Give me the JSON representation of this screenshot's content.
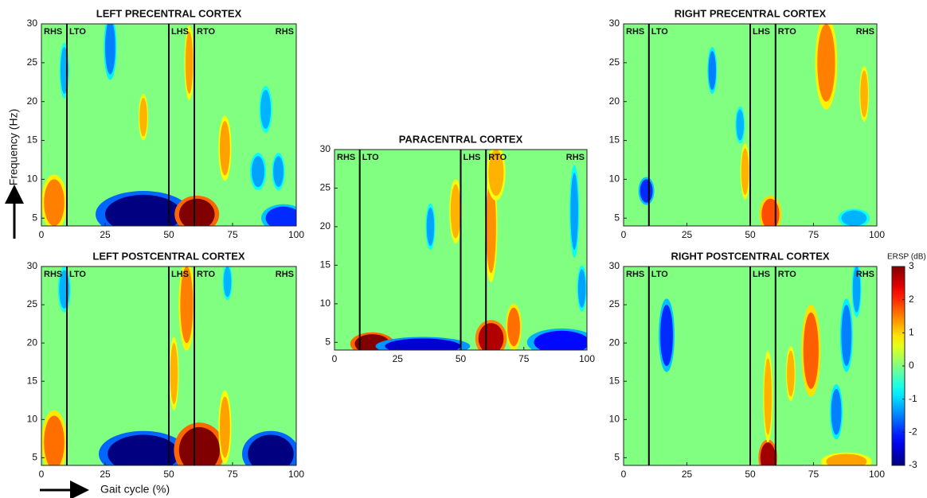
{
  "chart_data": [
    {
      "type": "heatmap",
      "title": "LEFT PRECENTRAL CORTEX",
      "ylabel": "Frequency (Hz)",
      "xlim": [
        0,
        100
      ],
      "ylim": [
        4,
        30
      ],
      "xticks": [
        0,
        25,
        50,
        75,
        100
      ],
      "yticks": [
        5,
        10,
        15,
        20,
        25,
        30
      ],
      "clim": [
        -3,
        3
      ],
      "events": [
        {
          "label": "RHS",
          "x": 0
        },
        {
          "label": "LTO",
          "x": 10
        },
        {
          "label": "LHS",
          "x": 50
        },
        {
          "label": "RTO",
          "x": 60
        },
        {
          "label": "RHS",
          "x": 100
        }
      ],
      "blobs": [
        {
          "x": 40,
          "y": 5.5,
          "w": 30,
          "h": 5,
          "value": -3
        },
        {
          "x": 61,
          "y": 5.5,
          "w": 14,
          "h": 4,
          "value": 3
        },
        {
          "x": 5,
          "y": 7,
          "w": 8,
          "h": 6,
          "value": 1.5
        },
        {
          "x": 27,
          "y": 27,
          "w": 4,
          "h": 7,
          "value": -1.5
        },
        {
          "x": 9,
          "y": 24,
          "w": 3,
          "h": 6,
          "value": -1.2
        },
        {
          "x": 72,
          "y": 14,
          "w": 4,
          "h": 7,
          "value": 1.3
        },
        {
          "x": 88,
          "y": 19,
          "w": 4,
          "h": 5,
          "value": -1.2
        },
        {
          "x": 85,
          "y": 11,
          "w": 5,
          "h": 4,
          "value": -1.3
        },
        {
          "x": 93,
          "y": 11,
          "w": 4,
          "h": 4,
          "value": -1.3
        },
        {
          "x": 40,
          "y": 18,
          "w": 3,
          "h": 5,
          "value": 1.2
        },
        {
          "x": 58,
          "y": 25,
          "w": 3,
          "h": 8,
          "value": 1.3
        },
        {
          "x": 95,
          "y": 5,
          "w": 14,
          "h": 3,
          "value": -2
        }
      ]
    },
    {
      "type": "heatmap",
      "title": "LEFT POSTCENTRAL CORTEX",
      "xlabel": "Gait cycle (%)",
      "xlim": [
        0,
        100
      ],
      "ylim": [
        4,
        30
      ],
      "xticks": [
        0,
        25,
        50,
        75,
        100
      ],
      "yticks": [
        5,
        10,
        15,
        20,
        25,
        30
      ],
      "clim": [
        -3,
        3
      ],
      "events": [
        {
          "label": "RHS",
          "x": 0
        },
        {
          "label": "LTO",
          "x": 10
        },
        {
          "label": "LHS",
          "x": 50
        },
        {
          "label": "RTO",
          "x": 60
        },
        {
          "label": "RHS",
          "x": 100
        }
      ],
      "blobs": [
        {
          "x": 40,
          "y": 5.5,
          "w": 28,
          "h": 5,
          "value": -3
        },
        {
          "x": 62,
          "y": 6,
          "w": 16,
          "h": 6,
          "value": 3
        },
        {
          "x": 90,
          "y": 5.5,
          "w": 18,
          "h": 5,
          "value": -3
        },
        {
          "x": 5,
          "y": 7,
          "w": 8,
          "h": 7,
          "value": 1.6
        },
        {
          "x": 57,
          "y": 25,
          "w": 5,
          "h": 10,
          "value": 1.5
        },
        {
          "x": 52,
          "y": 16,
          "w": 3,
          "h": 8,
          "value": 1.2
        },
        {
          "x": 9,
          "y": 27,
          "w": 4,
          "h": 5,
          "value": -1.2
        },
        {
          "x": 72,
          "y": 9,
          "w": 4,
          "h": 8,
          "value": 1.3
        },
        {
          "x": 73,
          "y": 28,
          "w": 3,
          "h": 4,
          "value": -1.2
        }
      ]
    },
    {
      "type": "heatmap",
      "title": "PARACENTRAL CORTEX",
      "xlim": [
        0,
        100
      ],
      "ylim": [
        4,
        30
      ],
      "xticks": [
        0,
        25,
        50,
        75,
        100
      ],
      "yticks": [
        5,
        10,
        15,
        20,
        25,
        30
      ],
      "clim": [
        -3,
        3
      ],
      "events": [
        {
          "label": "RHS",
          "x": 0
        },
        {
          "label": "LTO",
          "x": 10
        },
        {
          "label": "LHS",
          "x": 50
        },
        {
          "label": "RTO",
          "x": 60
        },
        {
          "label": "RHS",
          "x": 100
        }
      ],
      "blobs": [
        {
          "x": 15,
          "y": 4.8,
          "w": 14,
          "h": 2.5,
          "value": 3
        },
        {
          "x": 62,
          "y": 5.5,
          "w": 10,
          "h": 4,
          "value": 2.7
        },
        {
          "x": 71,
          "y": 7,
          "w": 5,
          "h": 5,
          "value": 1.6
        },
        {
          "x": 35,
          "y": 4.5,
          "w": 30,
          "h": 2,
          "value": -2.5
        },
        {
          "x": 90,
          "y": 5,
          "w": 22,
          "h": 3,
          "value": -2.2
        },
        {
          "x": 62,
          "y": 20,
          "w": 4,
          "h": 12,
          "value": 1.4
        },
        {
          "x": 48,
          "y": 22,
          "w": 4,
          "h": 7,
          "value": 1.2
        },
        {
          "x": 38,
          "y": 20,
          "w": 3,
          "h": 5,
          "value": -1.3
        },
        {
          "x": 95,
          "y": 22,
          "w": 3,
          "h": 10,
          "value": -1.3
        },
        {
          "x": 64,
          "y": 27,
          "w": 6,
          "h": 6,
          "value": 1.2
        },
        {
          "x": 98,
          "y": 12,
          "w": 3,
          "h": 5,
          "value": -1.3
        }
      ]
    },
    {
      "type": "heatmap",
      "title": "RIGHT PRECENTRAL CORTEX",
      "xlim": [
        0,
        100
      ],
      "ylim": [
        4,
        30
      ],
      "xticks": [
        0,
        25,
        50,
        75,
        100
      ],
      "yticks": [
        5,
        10,
        15,
        20,
        25,
        30
      ],
      "clim": [
        -3,
        3
      ],
      "events": [
        {
          "label": "RHS",
          "x": 0
        },
        {
          "label": "LTO",
          "x": 10
        },
        {
          "label": "LHS",
          "x": 50
        },
        {
          "label": "RTO",
          "x": 60
        },
        {
          "label": "RHS",
          "x": 100
        }
      ],
      "blobs": [
        {
          "x": 9,
          "y": 8.5,
          "w": 5,
          "h": 3,
          "value": -2
        },
        {
          "x": 58,
          "y": 5.5,
          "w": 7,
          "h": 4,
          "value": 1.8
        },
        {
          "x": 35,
          "y": 24,
          "w": 3,
          "h": 5,
          "value": -1.5
        },
        {
          "x": 80,
          "y": 25,
          "w": 7,
          "h": 10,
          "value": 1.5
        },
        {
          "x": 95,
          "y": 21,
          "w": 3,
          "h": 6,
          "value": 1.2
        },
        {
          "x": 48,
          "y": 11,
          "w": 3,
          "h": 6,
          "value": 1.2
        },
        {
          "x": 91,
          "y": 5,
          "w": 10,
          "h": 2,
          "value": -1.2
        },
        {
          "x": 46,
          "y": 17,
          "w": 3,
          "h": 4,
          "value": -1.2
        }
      ]
    },
    {
      "type": "heatmap",
      "title": "RIGHT POSTCENTRAL CORTEX",
      "clabel": "ERSP (dB)",
      "cticks": [
        -3,
        -2,
        -1,
        0,
        1,
        2,
        3
      ],
      "xlim": [
        0,
        100
      ],
      "ylim": [
        4,
        30
      ],
      "xticks": [
        0,
        25,
        50,
        75,
        100
      ],
      "yticks": [
        5,
        10,
        15,
        20,
        25,
        30
      ],
      "clim": [
        -3,
        3
      ],
      "events": [
        {
          "label": "RHS",
          "x": 0
        },
        {
          "label": "LTO",
          "x": 10
        },
        {
          "label": "LHS",
          "x": 50
        },
        {
          "label": "RTO",
          "x": 60
        },
        {
          "label": "RHS",
          "x": 100
        }
      ],
      "blobs": [
        {
          "x": 57,
          "y": 5,
          "w": 6,
          "h": 4,
          "value": 2.8
        },
        {
          "x": 57,
          "y": 13,
          "w": 3,
          "h": 10,
          "value": 1.2
        },
        {
          "x": 74,
          "y": 19,
          "w": 6,
          "h": 10,
          "value": 1.7
        },
        {
          "x": 17,
          "y": 21,
          "w": 5,
          "h": 8,
          "value": -2
        },
        {
          "x": 88,
          "y": 21,
          "w": 4,
          "h": 8,
          "value": -1.5
        },
        {
          "x": 66,
          "y": 16,
          "w": 3,
          "h": 6,
          "value": 1.2
        },
        {
          "x": 84,
          "y": 11,
          "w": 4,
          "h": 6,
          "value": -1.5
        },
        {
          "x": 88,
          "y": 4.5,
          "w": 16,
          "h": 2,
          "value": 1.3
        },
        {
          "x": 92,
          "y": 27,
          "w": 3,
          "h": 6,
          "value": -1.3
        }
      ]
    }
  ]
}
